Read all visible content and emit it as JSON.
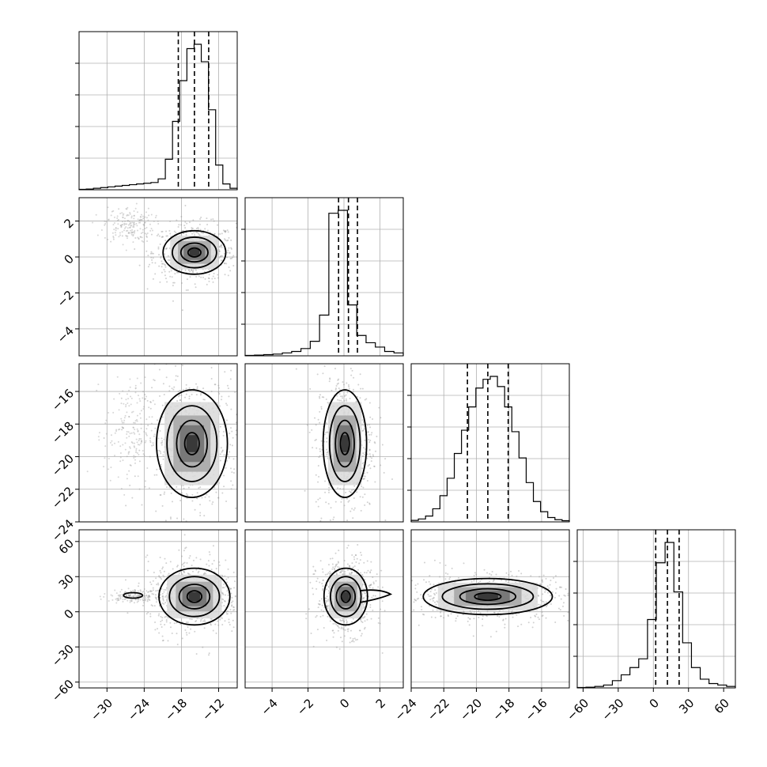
{
  "chart_data": {
    "type": "corner",
    "parameters": [
      {
        "ticks": [
          -30,
          -24,
          -18,
          -12
        ],
        "range": [
          -34.5,
          -9.0
        ],
        "median": -15.9,
        "quantiles": [
          -18.5,
          -13.6
        ],
        "hist_bins": [
          0.003,
          0.005,
          0.01,
          0.015,
          0.02,
          0.025,
          0.03,
          0.035,
          0.04,
          0.045,
          0.05,
          0.075,
          0.21,
          0.47,
          0.75,
          0.97,
          1.0,
          0.88,
          0.55,
          0.17,
          0.04,
          0.01
        ]
      },
      {
        "ticks": [
          -4,
          -2,
          0,
          2
        ],
        "range": [
          -5.5,
          3.3
        ],
        "median": 0.25,
        "quantiles": [
          -0.3,
          0.75
        ],
        "hist_bins": [
          0.003,
          0.005,
          0.008,
          0.012,
          0.02,
          0.03,
          0.05,
          0.1,
          0.28,
          0.98,
          1.0,
          0.35,
          0.14,
          0.09,
          0.06,
          0.03,
          0.02
        ]
      },
      {
        "ticks": [
          -24,
          -22,
          -20,
          -18,
          -16
        ],
        "range": [
          -24.0,
          -14.3
        ],
        "median": -19.3,
        "quantiles": [
          -20.55,
          -18.05
        ],
        "hist_bins": [
          0.01,
          0.02,
          0.04,
          0.09,
          0.18,
          0.3,
          0.47,
          0.63,
          0.79,
          0.92,
          0.98,
          1.0,
          0.93,
          0.79,
          0.62,
          0.44,
          0.27,
          0.14,
          0.07,
          0.03,
          0.015,
          0.008
        ]
      },
      {
        "ticks": [
          -60,
          -30,
          0,
          30,
          60
        ],
        "range": [
          -65.0,
          70.0
        ],
        "median": 12.0,
        "quantiles": [
          2.0,
          22.0
        ],
        "hist_bins": [
          0.003,
          0.005,
          0.01,
          0.02,
          0.05,
          0.09,
          0.14,
          0.2,
          0.47,
          0.86,
          1.0,
          0.66,
          0.31,
          0.14,
          0.06,
          0.03,
          0.02,
          0.01
        ]
      }
    ],
    "joint_centers": {
      "1-0": [
        -15.9,
        0.25
      ],
      "2-0": [
        -16.3,
        -19.2
      ],
      "3-0": [
        -15.9,
        13.0
      ],
      "2-1": [
        0.05,
        -19.2
      ],
      "3-1": [
        0.1,
        13.0
      ],
      "3-2": [
        -19.3,
        13.0
      ]
    },
    "grid": true,
    "hist_color": "#000000",
    "contour_color": "#000000",
    "scatter_color": "#9a9a9a",
    "density_colors": [
      "#d9d9d9",
      "#a6a6a6",
      "#6e6e6e",
      "#2e2e2e",
      "#000000"
    ]
  }
}
